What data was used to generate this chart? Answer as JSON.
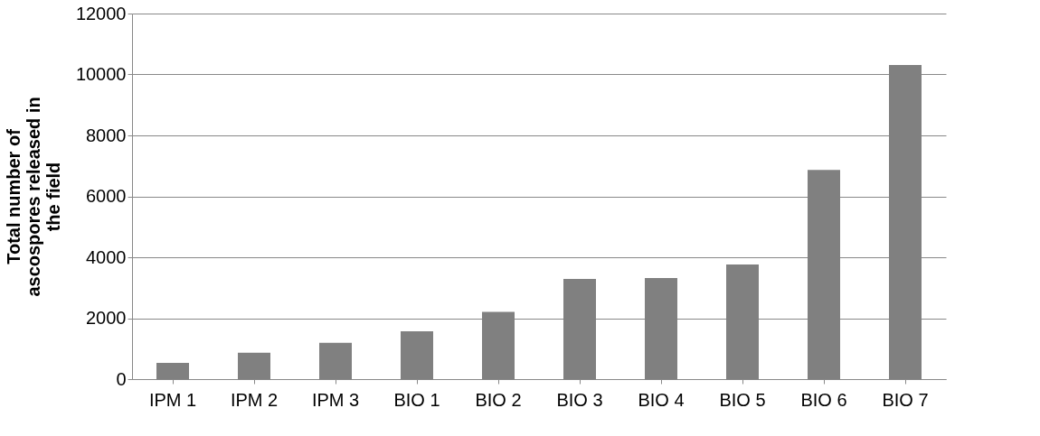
{
  "chart_data": {
    "type": "bar",
    "ylabel": "Total number of ascospores released in the field",
    "categories": [
      "IPM 1",
      "IPM 2",
      "IPM 3",
      "BIO 1",
      "BIO 2",
      "BIO 3",
      "BIO 4",
      "BIO 5",
      "BIO 6",
      "BIO 7"
    ],
    "values": [
      530,
      870,
      1190,
      1570,
      2210,
      3290,
      3320,
      3760,
      6870,
      10310
    ],
    "color": "#808080",
    "ylim": [
      0,
      12000
    ],
    "yticks": [
      0,
      2000,
      4000,
      6000,
      8000,
      10000,
      12000
    ],
    "grid": "y"
  }
}
